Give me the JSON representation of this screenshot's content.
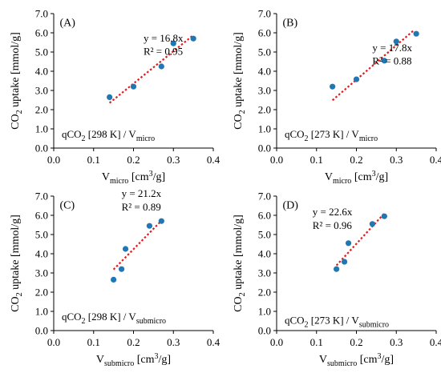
{
  "colors": {
    "points": "#1f77b4",
    "fit": "#e31a1c",
    "axis": "#000000"
  },
  "chart_data": [
    {
      "type": "scatter",
      "panel_label": "(A)",
      "x": [
        0.14,
        0.2,
        0.27,
        0.3,
        0.35
      ],
      "y": [
        2.65,
        3.2,
        4.25,
        5.45,
        5.7
      ],
      "fit": {
        "slope": 16.8,
        "x_range": [
          0.14,
          0.35
        ],
        "y_range": [
          2.35,
          5.88
        ]
      },
      "equation": "y = 16.8x",
      "r2_text": "R² = 0.95",
      "note": {
        "prefix": "qCO",
        "sub": "2",
        "suffix": " [298 K] / V",
        "sub2": "micro"
      },
      "xlabel": {
        "main": "V",
        "sub": "micro",
        "tail": " [cm",
        "sup": "3",
        "end": "/g]"
      },
      "ylabel": {
        "main": "CO",
        "sub": "2",
        "tail": " uptake [mmol/g]"
      },
      "xlim": [
        0.0,
        0.4
      ],
      "ylim": [
        0.0,
        7.0
      ],
      "xticks": [
        "0.0",
        "0.1",
        "0.2",
        "0.3",
        "0.4"
      ],
      "yticks": [
        "0.0",
        "1.0",
        "2.0",
        "3.0",
        "4.0",
        "5.0",
        "6.0",
        "7.0"
      ]
    },
    {
      "type": "scatter",
      "panel_label": "(B)",
      "x": [
        0.14,
        0.2,
        0.27,
        0.3,
        0.35
      ],
      "y": [
        3.2,
        3.58,
        4.55,
        5.55,
        5.95
      ],
      "fit": {
        "slope": 17.8,
        "x_range": [
          0.14,
          0.345
        ],
        "y_range": [
          2.49,
          6.15
        ]
      },
      "equation": "y = 17.8x",
      "r2_text": "R² = 0.88",
      "note": {
        "prefix": "qCO",
        "sub": "2",
        "suffix": " [273 K] / V",
        "sub2": "micro"
      },
      "xlabel": {
        "main": "V",
        "sub": "micro",
        "tail": " [cm",
        "sup": "3",
        "end": "/g]"
      },
      "ylabel": {
        "main": "CO",
        "sub": "2",
        "tail": " uptake [mmol/g]"
      },
      "xlim": [
        0.0,
        0.4
      ],
      "ylim": [
        0.0,
        7.0
      ],
      "xticks": [
        "0.0",
        "0.1",
        "0.2",
        "0.3",
        "0.4"
      ],
      "yticks": [
        "0.0",
        "1.0",
        "2.0",
        "3.0",
        "4.0",
        "5.0",
        "6.0",
        "7.0"
      ]
    },
    {
      "type": "scatter",
      "panel_label": "(C)",
      "x": [
        0.15,
        0.17,
        0.18,
        0.24,
        0.27
      ],
      "y": [
        2.65,
        3.2,
        4.25,
        5.45,
        5.7
      ],
      "fit": {
        "slope": 21.2,
        "x_range": [
          0.15,
          0.27
        ],
        "y_range": [
          3.18,
          5.72
        ]
      },
      "equation": "y = 21.2x",
      "r2_text": "R² = 0.89",
      "note": {
        "prefix": "qCO",
        "sub": "2",
        "suffix": " [298 K] / V",
        "sub2": "submicro"
      },
      "xlabel": {
        "main": "V",
        "sub": "submicro",
        "tail": " [cm",
        "sup": "3",
        "end": "/g]"
      },
      "ylabel": {
        "main": "CO",
        "sub": "2",
        "tail": " uptake [mmol/g]"
      },
      "xlim": [
        0.0,
        0.4
      ],
      "ylim": [
        0.0,
        7.0
      ],
      "xticks": [
        "0.0",
        "0.1",
        "0.2",
        "0.3",
        "0.4"
      ],
      "yticks": [
        "0.0",
        "1.0",
        "2.0",
        "3.0",
        "4.0",
        "5.0",
        "6.0",
        "7.0"
      ]
    },
    {
      "type": "scatter",
      "panel_label": "(D)",
      "x": [
        0.15,
        0.17,
        0.18,
        0.24,
        0.27
      ],
      "y": [
        3.2,
        3.58,
        4.55,
        5.55,
        5.95
      ],
      "fit": {
        "slope": 22.6,
        "x_range": [
          0.15,
          0.27
        ],
        "y_range": [
          3.39,
          6.1
        ]
      },
      "equation": "y = 22.6x",
      "r2_text": "R² = 0.96",
      "note": {
        "prefix": "qCO",
        "sub": "2",
        "suffix": " [273 K] / V",
        "sub2": "submicro"
      },
      "xlabel": {
        "main": "V",
        "sub": "submicro",
        "tail": " [cm",
        "sup": "3",
        "end": "/g]"
      },
      "ylabel": {
        "main": "CO",
        "sub": "2",
        "tail": " uptake [mmol/g]"
      },
      "xlim": [
        0.0,
        0.4
      ],
      "ylim": [
        0.0,
        7.0
      ],
      "xticks": [
        "0.0",
        "0.1",
        "0.2",
        "0.3",
        "0.4"
      ],
      "yticks": [
        "0.0",
        "1.0",
        "2.0",
        "3.0",
        "4.0",
        "5.0",
        "6.0",
        "7.0"
      ]
    }
  ]
}
